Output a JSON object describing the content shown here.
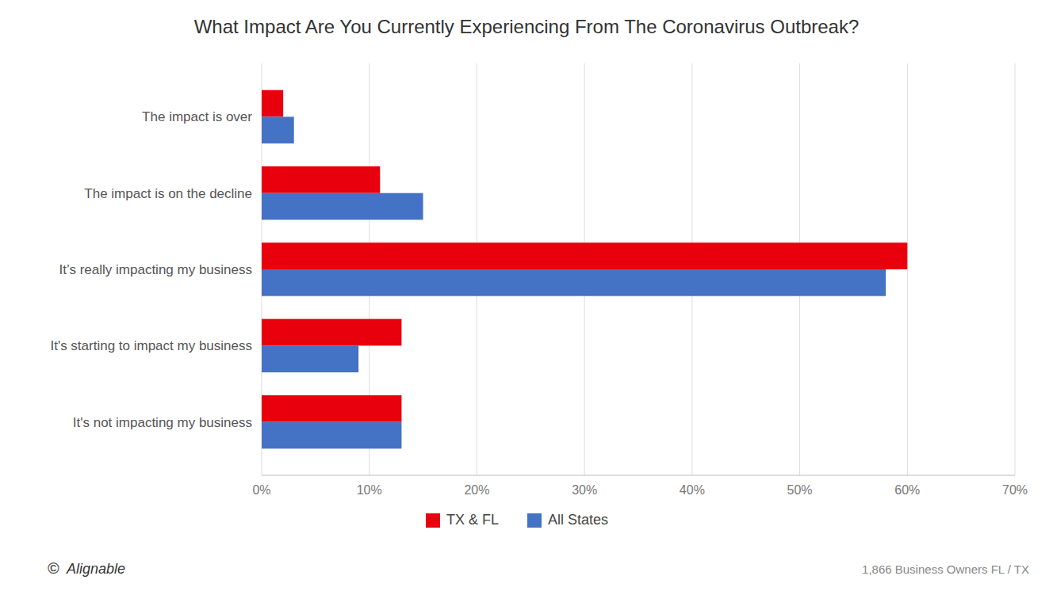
{
  "chart_data": {
    "type": "bar",
    "orientation": "horizontal",
    "title": "What Impact Are You Currently Experiencing From The Coronavirus Outbreak?",
    "categories": [
      "It's not impacting my business",
      "It's starting to impact my business",
      "It’s really impacting my business",
      "The impact is on the decline",
      "The impact is over"
    ],
    "series": [
      {
        "name": "TX & FL",
        "color": "#e8000d",
        "values": [
          13,
          13,
          60,
          11,
          2
        ]
      },
      {
        "name": "All States",
        "color": "#4472c4",
        "values": [
          13,
          9,
          58,
          15,
          3
        ]
      }
    ],
    "xlim": [
      0,
      70
    ],
    "xticks": [
      {
        "value": 0,
        "label": "0%"
      },
      {
        "value": 10,
        "label": "10%"
      },
      {
        "value": 20,
        "label": "20%"
      },
      {
        "value": 30,
        "label": "30%"
      },
      {
        "value": 40,
        "label": "40%"
      },
      {
        "value": 50,
        "label": "50%"
      },
      {
        "value": 60,
        "label": "60%"
      },
      {
        "value": 70,
        "label": "70%"
      }
    ],
    "grid": true,
    "legend": "bottom",
    "annotations": [
      "©",
      "Alignable",
      "1,866 Business Owners FL / TX"
    ]
  }
}
